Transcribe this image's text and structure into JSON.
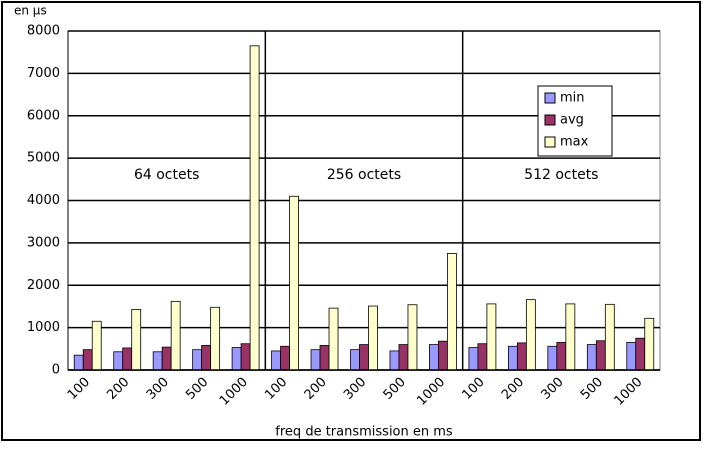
{
  "chart_data": {
    "type": "bar",
    "y_label": "en µs",
    "x_label": "freq de transmission en ms",
    "categories": [
      "100",
      "200",
      "300",
      "500",
      "1000",
      "100",
      "200",
      "300",
      "500",
      "1000",
      "100",
      "200",
      "300",
      "500",
      "1000"
    ],
    "series": [
      {
        "name": "min",
        "color": "#9999ff",
        "values": [
          350,
          430,
          430,
          480,
          530,
          450,
          480,
          480,
          450,
          600,
          530,
          560,
          560,
          600,
          650
        ]
      },
      {
        "name": "avg",
        "color": "#993366",
        "values": [
          480,
          520,
          540,
          580,
          620,
          560,
          580,
          600,
          600,
          680,
          620,
          640,
          650,
          690,
          750
        ]
      },
      {
        "name": "max",
        "color": "#ffffcc",
        "values": [
          1150,
          1430,
          1620,
          1480,
          7650,
          4100,
          1460,
          1510,
          1540,
          2750,
          1560,
          1660,
          1560,
          1550,
          1220
        ]
      }
    ],
    "annotations": [
      "64 octets",
      "256 octets",
      "512 octets"
    ],
    "ylim": [
      0,
      8000
    ],
    "yticks": [
      0,
      1000,
      2000,
      3000,
      4000,
      5000,
      6000,
      7000,
      8000
    ],
    "grid": true,
    "legend": "upper right"
  }
}
